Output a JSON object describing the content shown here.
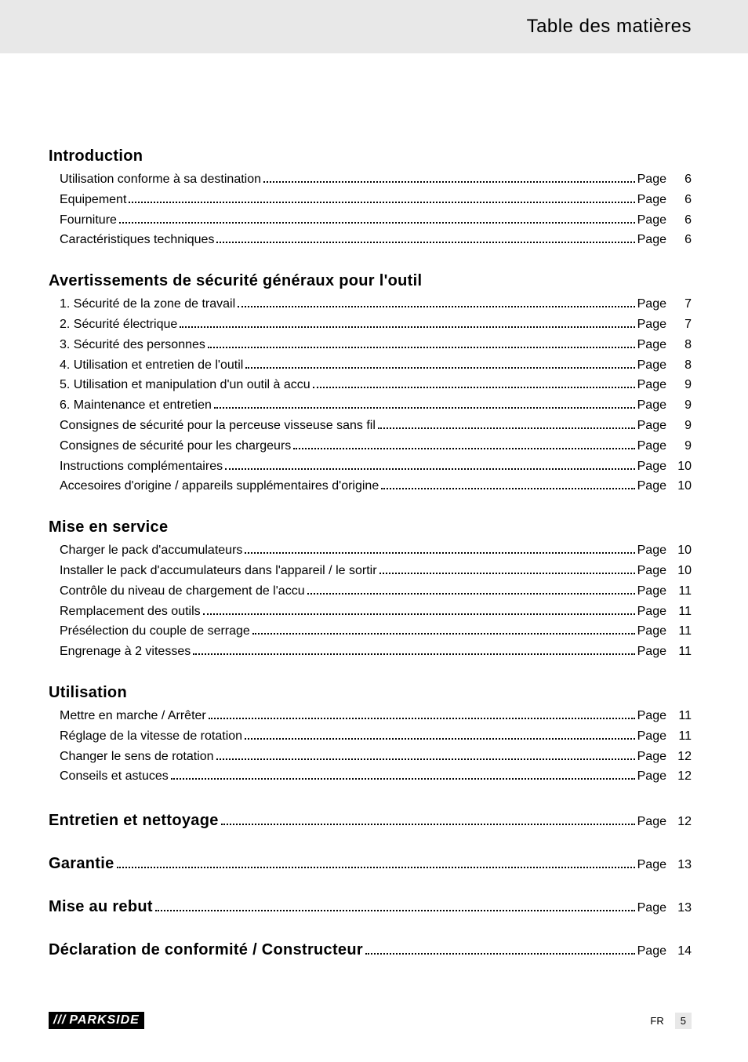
{
  "header": {
    "title": "Table des matières"
  },
  "page_label": "Page",
  "sections": [
    {
      "title": "Introduction",
      "entries": [
        {
          "title": "Utilisation conforme à sa destination",
          "page": "6"
        },
        {
          "title": "Equipement",
          "page": "6"
        },
        {
          "title": "Fourniture",
          "page": "6"
        },
        {
          "title": "Caractéristiques techniques",
          "page": "6"
        }
      ]
    },
    {
      "title": "Avertissements de sécurité généraux pour l'outil",
      "entries": [
        {
          "title": "1. Sécurité de la zone de travail",
          "page": "7"
        },
        {
          "title": "2. Sécurité électrique",
          "page": "7"
        },
        {
          "title": "3. Sécurité des personnes",
          "page": "8"
        },
        {
          "title": "4. Utilisation et entretien de l'outil",
          "page": "8"
        },
        {
          "title": "5. Utilisation et manipulation d'un outil à accu",
          "page": "9"
        },
        {
          "title": "6. Maintenance et entretien",
          "page": "9"
        },
        {
          "title": "Consignes de sécurité pour la perceuse visseuse sans fil",
          "page": "9"
        },
        {
          "title": "Consignes de sécurité pour les chargeurs",
          "page": "9"
        },
        {
          "title": "Instructions complémentaires",
          "page": "10"
        },
        {
          "title": "Accesoires d'origine / appareils supplémentaires d'origine",
          "page": "10"
        }
      ]
    },
    {
      "title": "Mise en service",
      "entries": [
        {
          "title": "Charger le pack d'accumulateurs",
          "page": "10"
        },
        {
          "title": "Installer le pack d'accumulateurs dans l'appareil / le sortir",
          "page": "10"
        },
        {
          "title": "Contrôle du niveau de chargement de l'accu",
          "page": "11"
        },
        {
          "title": "Remplacement des outils",
          "page": "11"
        },
        {
          "title": "Présélection du couple de serrage",
          "page": "11"
        },
        {
          "title": "Engrenage à 2 vitesses",
          "page": "11"
        }
      ]
    },
    {
      "title": "Utilisation",
      "entries": [
        {
          "title": "Mettre en marche / Arrêter",
          "page": "11"
        },
        {
          "title": "Réglage de la vitesse de rotation",
          "page": "11"
        },
        {
          "title": "Changer le sens de rotation",
          "page": "12"
        },
        {
          "title": "Conseils et astuces",
          "page": "12"
        }
      ]
    }
  ],
  "inline_sections": [
    {
      "title": "Entretien et nettoyage",
      "page": "12"
    },
    {
      "title": "Garantie",
      "page": "13"
    },
    {
      "title": "Mise au rebut",
      "page": "13"
    },
    {
      "title": "Déclaration de conformité / Constructeur",
      "page": "14"
    }
  ],
  "footer": {
    "brand_slashes": "///",
    "brand_name": "PARKSIDE",
    "lang": "FR",
    "page": "5"
  }
}
